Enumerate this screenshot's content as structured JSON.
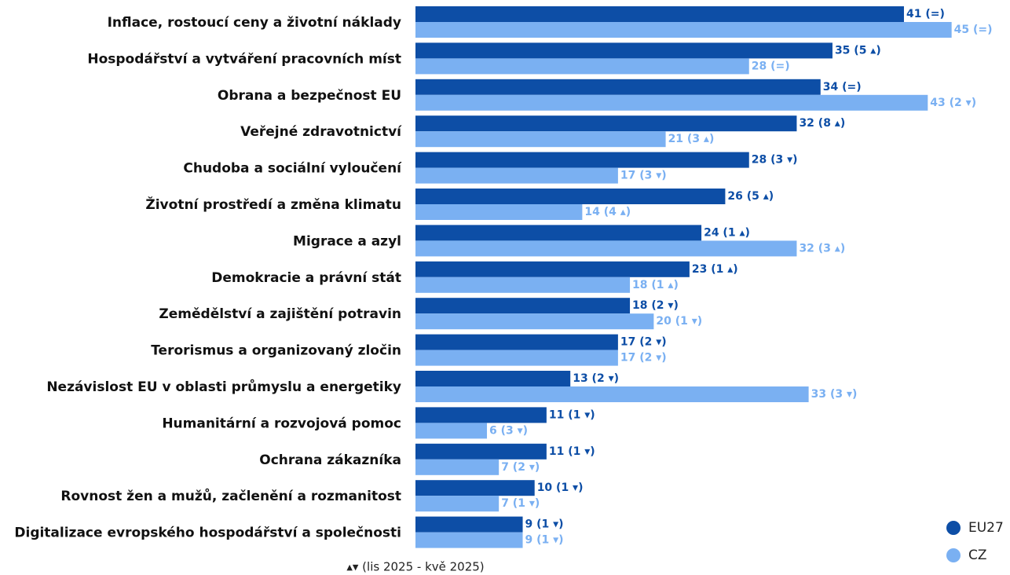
{
  "chart_data": {
    "type": "bar",
    "orientation": "horizontal",
    "categories": [
      "Inflace, rostoucí ceny a životní náklady",
      "Hospodářství a vytváření pracovních míst",
      "Obrana a bezpečnost EU",
      "Veřejné zdravotnictví",
      "Chudoba a sociální vyloučení",
      "Životní prostředí a změna klimatu",
      "Migrace a azyl",
      "Demokracie a právní stát",
      "Zemědělství a zajištění potravin",
      "Terorismus a organizovaný zločin",
      "Nezávislost EU v oblasti průmyslu a energetiky",
      "Humanitární a rozvojová pomoc",
      "Ochrana zákazníka",
      "Rovnost žen a mužů, začlenění a rozmanitost",
      "Digitalizace evropského hospodářství a společnosti"
    ],
    "series": [
      {
        "name": "EU27",
        "color": "#0d4ea6",
        "values": [
          41,
          35,
          34,
          32,
          28,
          26,
          24,
          23,
          18,
          17,
          13,
          11,
          11,
          10,
          9
        ],
        "value_labels": [
          "41 (=)",
          "35 (5 ▴)",
          "34 (=)",
          "32 (8 ▴)",
          "28 (3 ▾)",
          "26 (5 ▴)",
          "24 (1 ▴)",
          "23 (1 ▴)",
          "18 (2 ▾)",
          "17 (2 ▾)",
          "13 (2 ▾)",
          "11 (1 ▾)",
          "11 (1 ▾)",
          "10 (1 ▾)",
          "9 (1 ▾)"
        ]
      },
      {
        "name": "CZ",
        "color": "#7ab0f2",
        "values": [
          45,
          28,
          43,
          21,
          17,
          14,
          32,
          18,
          20,
          17,
          33,
          6,
          7,
          7,
          9
        ],
        "value_labels": [
          "45 (=)",
          "28 (=)",
          "43 (2 ▾)",
          "21 (3 ▴)",
          "17 (3 ▾)",
          "14 (4 ▴)",
          "32 (3 ▴)",
          "18 (1 ▴)",
          "20 (1 ▾)",
          "17 (2 ▾)",
          "33 (3 ▾)",
          "6 (3 ▾)",
          "7 (2 ▾)",
          "7 (1 ▾)",
          "9 (1 ▾)"
        ]
      }
    ],
    "note": "▴▾ (lis 2025 - kvě 2025)",
    "legend": "bottom-right"
  }
}
